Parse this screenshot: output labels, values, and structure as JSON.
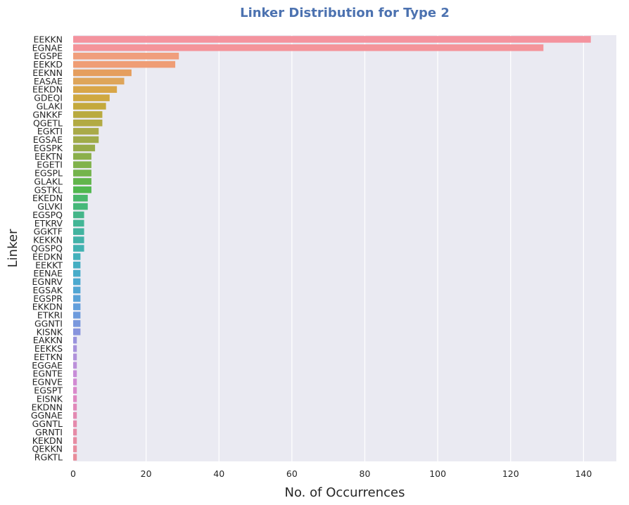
{
  "chart_data": {
    "type": "bar",
    "orientation": "horizontal",
    "title": "Linker Distribution for Type 2",
    "xlabel": "No. of Occurrences",
    "ylabel": "Linker",
    "xlim": [
      0,
      149
    ],
    "xticks": [
      0,
      20,
      40,
      60,
      80,
      100,
      120,
      140
    ],
    "grid": true,
    "background": "#eaeaf2",
    "title_color": "#4c72b0",
    "categories": [
      "EEKKN",
      "EGNAE",
      "EGSPE",
      "EEKKD",
      "EEKNN",
      "EASAE",
      "EEKDN",
      "GDEQI",
      "GLAKI",
      "GNKKF",
      "QGETL",
      "EGKTI",
      "EGSAE",
      "EGSPK",
      "EEKTN",
      "EGETI",
      "EGSPL",
      "GLAKL",
      "GSTKL",
      "EKEDN",
      "GLVKI",
      "EGSPQ",
      "ETKRV",
      "GGKTF",
      "KEKKN",
      "QGSPQ",
      "EEDKN",
      "EEKKT",
      "EENAE",
      "EGNRV",
      "EGSAK",
      "EGSPR",
      "EKKDN",
      "ETKRI",
      "GGNTI",
      "KISNK",
      "EAKKN",
      "EEKKS",
      "EETKN",
      "EGGAE",
      "EGNTE",
      "EGNVE",
      "EGSPT",
      "EISNK",
      "EKDNN",
      "GGNAE",
      "GGNTL",
      "GRNTI",
      "KEKDN",
      "QEKKN",
      "RGKTL"
    ],
    "values": [
      142,
      129,
      29,
      28,
      16,
      14,
      12,
      10,
      9,
      8,
      8,
      7,
      7,
      6,
      5,
      5,
      5,
      5,
      5,
      4,
      4,
      3,
      3,
      3,
      3,
      3,
      2,
      2,
      2,
      2,
      2,
      2,
      2,
      2,
      2,
      2,
      1,
      1,
      1,
      1,
      1,
      1,
      1,
      1,
      1,
      1,
      1,
      1,
      1,
      1,
      1
    ],
    "colors": [
      "#f4939e",
      "#f4949a",
      "#f09e7c",
      "#ef9d75",
      "#e59e5e",
      "#dea55a",
      "#d8a648",
      "#cfa840",
      "#c4a93c",
      "#b9aa3f",
      "#b2aa43",
      "#a9aa48",
      "#a0ab4a",
      "#97ab49",
      "#8bb04b",
      "#80b24b",
      "#74b44c",
      "#61b54b",
      "#50b84e",
      "#49b86b",
      "#45b879",
      "#44b689",
      "#43b696",
      "#42b39f",
      "#42b2a8",
      "#42b2b1",
      "#43b1bb",
      "#45aec2",
      "#48acc9",
      "#4ba9cf",
      "#51a6d3",
      "#5aa3d8",
      "#629fdc",
      "#6d9bdd",
      "#7a98dd",
      "#8794dd",
      "#9993dd",
      "#a792dc",
      "#b192db",
      "#bc90da",
      "#c78dd8",
      "#d28ad2",
      "#da89cb",
      "#df88c2",
      "#e189ba",
      "#e38ab2",
      "#e58aac",
      "#e68ba6",
      "#e78ca2",
      "#e88d9e",
      "#e98d9a"
    ]
  }
}
